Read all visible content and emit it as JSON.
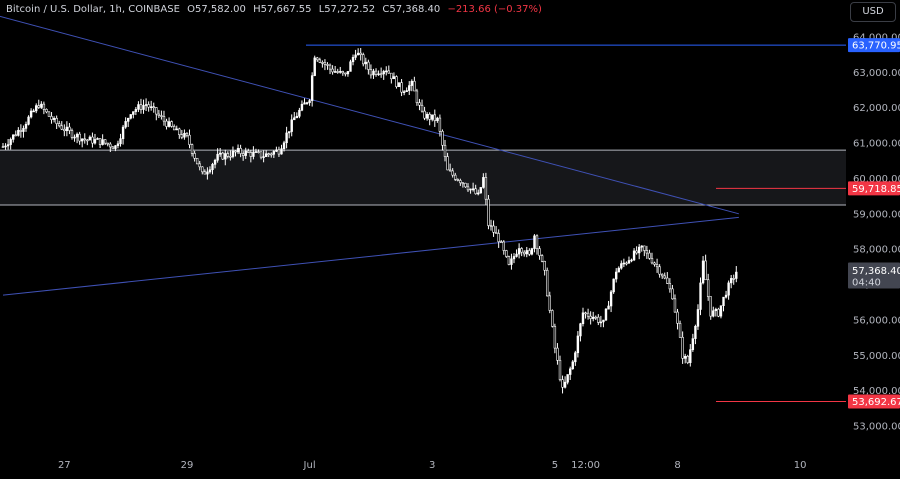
{
  "header": {
    "symbol": "Bitcoin / U.S. Dollar, 1h, COINBASE",
    "open_label": "O",
    "open": "57,582.00",
    "high_label": "H",
    "high": "57,667.55",
    "low_label": "L",
    "low": "57,272.52",
    "close_label": "C",
    "close": "57,368.40",
    "change": "−213.66 (−0.37%)"
  },
  "currency_button": "USD",
  "colors": {
    "background": "#000000",
    "candle": "#ffffff",
    "trendline": "#3f51b5",
    "zone_line": "#b2b5be",
    "level_red": "#f23645",
    "label_blue": "#2962ff",
    "last_price_bg": "#434651"
  },
  "chart_data": {
    "type": "candlestick",
    "grid": false,
    "ylim": [
      52800,
      64300
    ],
    "y_ticks": [
      "53,000.00",
      "54,000.00",
      "55,000.00",
      "56,000.00",
      "57,000.00",
      "58,000.00",
      "59,000.00",
      "60,000.00",
      "61,000.00",
      "62,000.00",
      "63,000.00",
      "64,000.00"
    ],
    "y_tick_values": [
      53000,
      54000,
      55000,
      56000,
      57000,
      58000,
      59000,
      60000,
      61000,
      62000,
      63000,
      64000
    ],
    "x_tick_labels": [
      "27",
      "29",
      "Jul",
      "3",
      "5",
      "12:00",
      "8",
      "10"
    ],
    "x_tick_index": [
      24,
      72,
      120,
      168,
      216,
      228,
      264,
      312
    ],
    "candle_count": 288,
    "price_path": [
      [
        0,
        60900
      ],
      [
        8,
        61500
      ],
      [
        14,
        62100
      ],
      [
        20,
        61600
      ],
      [
        26,
        61300
      ],
      [
        32,
        61100
      ],
      [
        38,
        61050
      ],
      [
        44,
        60900
      ],
      [
        50,
        61900
      ],
      [
        56,
        62100
      ],
      [
        62,
        61700
      ],
      [
        68,
        61300
      ],
      [
        72,
        61150
      ],
      [
        78,
        60100
      ],
      [
        84,
        60600
      ],
      [
        92,
        60750
      ],
      [
        102,
        60650
      ],
      [
        108,
        60800
      ],
      [
        114,
        61700
      ],
      [
        120,
        62300
      ],
      [
        122,
        63500
      ],
      [
        128,
        63100
      ],
      [
        134,
        62900
      ],
      [
        138,
        63600
      ],
      [
        144,
        63000
      ],
      [
        150,
        63100
      ],
      [
        156,
        62500
      ],
      [
        160,
        62650
      ],
      [
        164,
        61800
      ],
      [
        170,
        61650
      ],
      [
        174,
        60200
      ],
      [
        180,
        59900
      ],
      [
        186,
        59500
      ],
      [
        188,
        60000
      ],
      [
        190,
        58700
      ],
      [
        194,
        58300
      ],
      [
        198,
        57500
      ],
      [
        202,
        58100
      ],
      [
        206,
        57800
      ],
      [
        208,
        58400
      ],
      [
        212,
        57300
      ],
      [
        216,
        55200
      ],
      [
        219,
        54000
      ],
      [
        223,
        54800
      ],
      [
        227,
        56200
      ],
      [
        231,
        56100
      ],
      [
        235,
        55900
      ],
      [
        240,
        57400
      ],
      [
        246,
        57800
      ],
      [
        250,
        58000
      ],
      [
        254,
        57700
      ],
      [
        258,
        57300
      ],
      [
        262,
        56700
      ],
      [
        266,
        55000
      ],
      [
        268,
        54800
      ],
      [
        272,
        56300
      ],
      [
        274,
        57600
      ],
      [
        277,
        56200
      ],
      [
        280,
        56200
      ],
      [
        283,
        56800
      ],
      [
        287,
        57368
      ]
    ],
    "horizontal_levels": [
      {
        "value": 63770.95,
        "label": "63,770.95",
        "kind": "resistance"
      },
      {
        "value": 59718.85,
        "label": "59,718.85",
        "kind": "target"
      },
      {
        "value": 53692.67,
        "label": "53,692.67",
        "kind": "support"
      }
    ],
    "zone": {
      "top": 60800,
      "bottom": 59250
    },
    "trendlines": [
      {
        "from": [
          -28,
          65100
        ],
        "to": [
          288,
          59000
        ]
      },
      {
        "from": [
          0,
          56700
        ],
        "to": [
          288,
          58900
        ]
      }
    ],
    "last_price": "57,368.40",
    "countdown": "04:40"
  }
}
